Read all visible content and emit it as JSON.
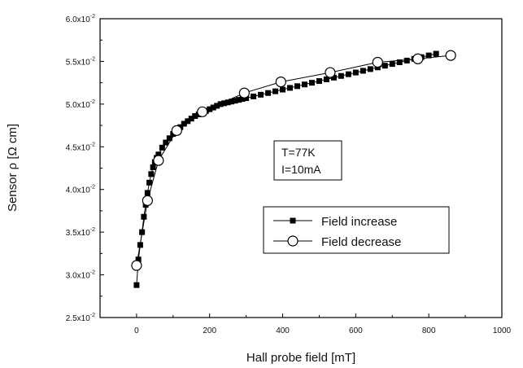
{
  "chart_data": {
    "type": "scatter",
    "xlabel": "Hall probe field [mT]",
    "ylabel": "Sensor ρ [Ω cm]",
    "xlim": [
      -100,
      1000
    ],
    "ylim": [
      0.025,
      0.06
    ],
    "x_ticks": [
      0,
      200,
      400,
      600,
      800,
      1000
    ],
    "x_tick_labels": [
      "0",
      "200",
      "400",
      "600",
      "800",
      "1000"
    ],
    "y_ticks": [
      0.025,
      0.03,
      0.035,
      0.04,
      0.045,
      0.05,
      0.055,
      0.06
    ],
    "y_tick_labels": [
      {
        "mant": "2.5x10",
        "exp": "-2"
      },
      {
        "mant": "3.0x10",
        "exp": "-2"
      },
      {
        "mant": "3.5x10",
        "exp": "-2"
      },
      {
        "mant": "4.0x10",
        "exp": "-2"
      },
      {
        "mant": "4.5x10",
        "exp": "-2"
      },
      {
        "mant": "5.0x10",
        "exp": "-2"
      },
      {
        "mant": "5.5x10",
        "exp": "-2"
      },
      {
        "mant": "6.0x10",
        "exp": "-2"
      }
    ],
    "grid": false,
    "legend": "center-right",
    "annotations": [
      "T=77K",
      "I=10mA"
    ],
    "series": [
      {
        "name": "Field increase",
        "marker": "filled-square",
        "x": [
          0,
          5,
          10,
          15,
          20,
          25,
          30,
          35,
          40,
          45,
          50,
          55,
          60,
          70,
          80,
          90,
          100,
          110,
          120,
          130,
          140,
          150,
          160,
          170,
          180,
          190,
          200,
          210,
          220,
          230,
          240,
          250,
          260,
          270,
          280,
          290,
          300,
          320,
          340,
          360,
          380,
          400,
          420,
          440,
          460,
          480,
          500,
          520,
          540,
          560,
          580,
          600,
          620,
          640,
          660,
          680,
          700,
          720,
          740,
          760,
          780,
          800,
          820
        ],
        "y": [
          0.0288,
          0.0318,
          0.0335,
          0.035,
          0.0368,
          0.0382,
          0.0396,
          0.0408,
          0.0418,
          0.0426,
          0.0432,
          0.0437,
          0.0441,
          0.0449,
          0.0455,
          0.046,
          0.0465,
          0.0469,
          0.0473,
          0.0477,
          0.048,
          0.0483,
          0.0486,
          0.0488,
          0.049,
          0.0492,
          0.0494,
          0.0496,
          0.0498,
          0.05,
          0.0501,
          0.0502,
          0.0503,
          0.0504,
          0.0505,
          0.0506,
          0.0507,
          0.0509,
          0.0511,
          0.0513,
          0.0515,
          0.0517,
          0.0519,
          0.0521,
          0.0523,
          0.0525,
          0.0527,
          0.0529,
          0.0531,
          0.0533,
          0.0535,
          0.0537,
          0.0539,
          0.0541,
          0.0543,
          0.0545,
          0.0547,
          0.0549,
          0.0551,
          0.0553,
          0.0555,
          0.0557,
          0.0559
        ]
      },
      {
        "name": "Field decrease",
        "marker": "open-circle",
        "x": [
          0,
          30,
          60,
          110,
          180,
          295,
          395,
          530,
          660,
          770,
          860
        ],
        "y": [
          0.0311,
          0.0387,
          0.0434,
          0.0469,
          0.0491,
          0.0513,
          0.0526,
          0.0537,
          0.0549,
          0.0553,
          0.0557
        ]
      }
    ]
  }
}
